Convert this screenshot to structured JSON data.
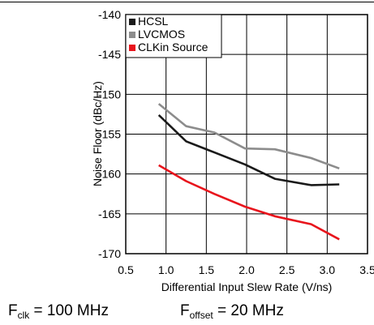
{
  "chart_data": {
    "type": "line",
    "title": "",
    "xlabel": "Differential Input Slew Rate (V/ns)",
    "ylabel": "Noise Floor (dBc/Hz)",
    "xlim": [
      0.5,
      3.5
    ],
    "ylim": [
      -170,
      -140
    ],
    "xticks": [
      "0.5",
      "1.0",
      "1.5",
      "2.0",
      "2.5",
      "3.0",
      "3.5"
    ],
    "yticks": [
      "-140",
      "-145",
      "-150",
      "-155",
      "-160",
      "-165",
      "-170"
    ],
    "grid": true,
    "legend_position": "top-left",
    "series": [
      {
        "name": "HCSL",
        "color": "#1a1a1a",
        "x": [
          0.91,
          1.25,
          1.6,
          1.98,
          2.35,
          2.8,
          3.15
        ],
        "y": [
          -152.6,
          -155.9,
          -157.3,
          -158.8,
          -160.6,
          -161.4,
          -161.3
        ]
      },
      {
        "name": "LVCMOS",
        "color": "#8c8c8c",
        "x": [
          0.91,
          1.25,
          1.6,
          1.98,
          2.35,
          2.8,
          3.15
        ],
        "y": [
          -151.2,
          -154.0,
          -154.8,
          -156.8,
          -156.9,
          -158.0,
          -159.3
        ]
      },
      {
        "name": "CLKin Source",
        "color": "#e8141c",
        "x": [
          0.91,
          1.25,
          1.6,
          1.98,
          2.35,
          2.8,
          3.15
        ],
        "y": [
          -158.9,
          -160.9,
          -162.5,
          -164.1,
          -165.3,
          -166.3,
          -168.2
        ]
      }
    ]
  },
  "captions": {
    "fclk_symbol": "F",
    "fclk_sub": "clk",
    "fclk_value": " = 100 MHz",
    "foffset_symbol": "F",
    "foffset_sub": "offset",
    "foffset_value": " = 20 MHz"
  }
}
